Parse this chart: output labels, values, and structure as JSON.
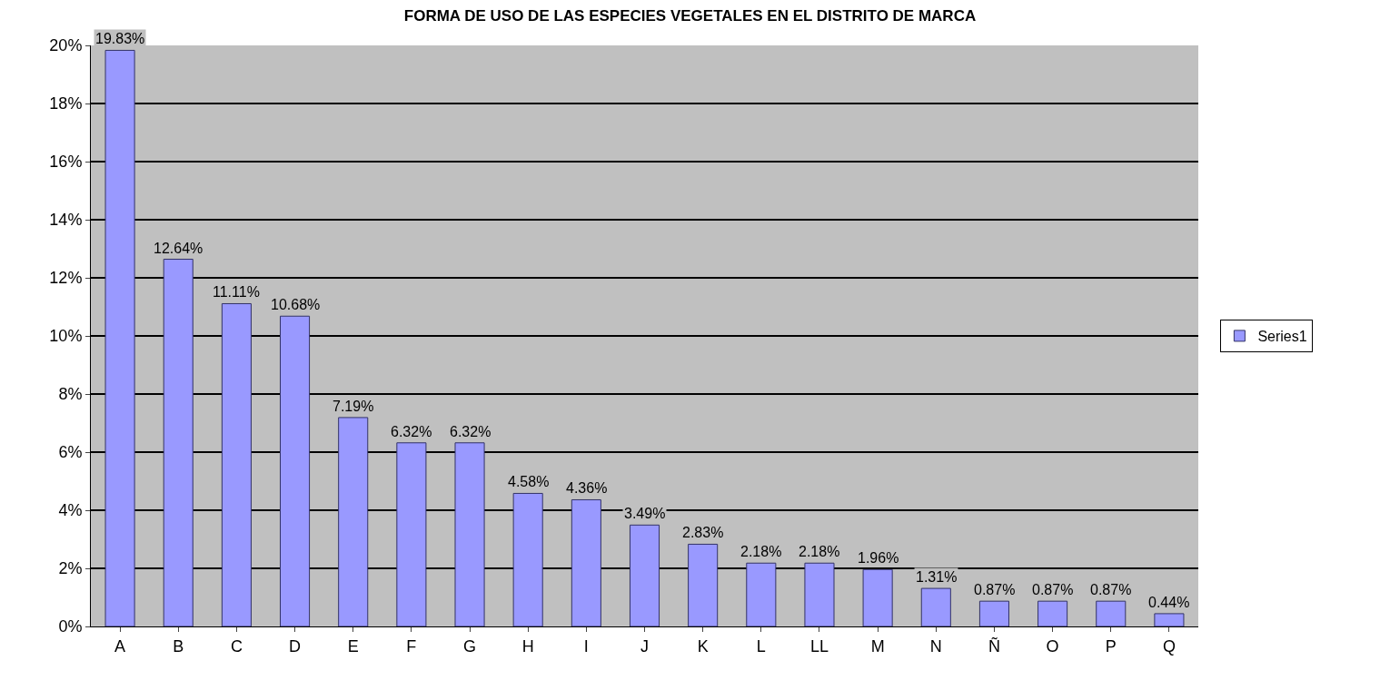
{
  "chart_data": {
    "type": "bar",
    "title": "FORMA DE USO DE LAS ESPECIES VEGETALES EN EL DISTRITO DE MARCA",
    "categories": [
      "A",
      "B",
      "C",
      "D",
      "E",
      "F",
      "G",
      "H",
      "I",
      "J",
      "K",
      "L",
      "LL",
      "M",
      "N",
      "Ñ",
      "O",
      "P",
      "Q"
    ],
    "series": [
      {
        "name": "Series1",
        "color": "#9999ff",
        "values": [
          19.83,
          12.64,
          11.11,
          10.68,
          7.19,
          6.32,
          6.32,
          4.58,
          4.36,
          3.49,
          2.83,
          2.18,
          2.18,
          1.96,
          1.31,
          0.87,
          0.87,
          0.87,
          0.44
        ],
        "value_labels": [
          "19.83%",
          "12.64%",
          "11.11%",
          "10.68%",
          "7.19%",
          "6.32%",
          "6.32%",
          "4.58%",
          "4.36%",
          "3.49%",
          "2.83%",
          "2.18%",
          "2.18%",
          "1.96%",
          "1.31%",
          "0.87%",
          "0.87%",
          "0.87%",
          "0.44%"
        ]
      }
    ],
    "ylim": [
      0,
      20
    ],
    "yticks": [
      {
        "value": 0,
        "label": "0%"
      },
      {
        "value": 2,
        "label": "2%"
      },
      {
        "value": 4,
        "label": "4%"
      },
      {
        "value": 6,
        "label": "6%"
      },
      {
        "value": 8,
        "label": "8%"
      },
      {
        "value": 10,
        "label": "10%"
      },
      {
        "value": 12,
        "label": "12%"
      },
      {
        "value": 14,
        "label": "14%"
      },
      {
        "value": 16,
        "label": "16%"
      },
      {
        "value": 18,
        "label": "18%"
      },
      {
        "value": 20,
        "label": "20%"
      }
    ],
    "grid": "y",
    "legend": "right"
  }
}
